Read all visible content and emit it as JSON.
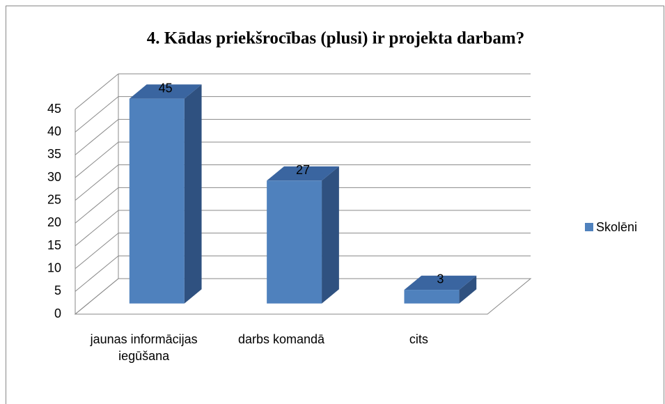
{
  "chart_data": {
    "type": "bar3d",
    "title": "4. Kādas priekšrocības (plusi)  ir projekta darbam?",
    "categories": [
      "jaunas informācijas iegūšana",
      "darbs komandā",
      "cits"
    ],
    "series": [
      {
        "name": "Skolēni",
        "color": "#4f81bd",
        "values": [
          45,
          27,
          3
        ]
      }
    ],
    "ylim": [
      0,
      45
    ],
    "yticks": [
      0,
      5,
      10,
      15,
      20,
      25,
      30,
      35,
      40,
      45
    ],
    "grid": true,
    "legend": "right"
  }
}
